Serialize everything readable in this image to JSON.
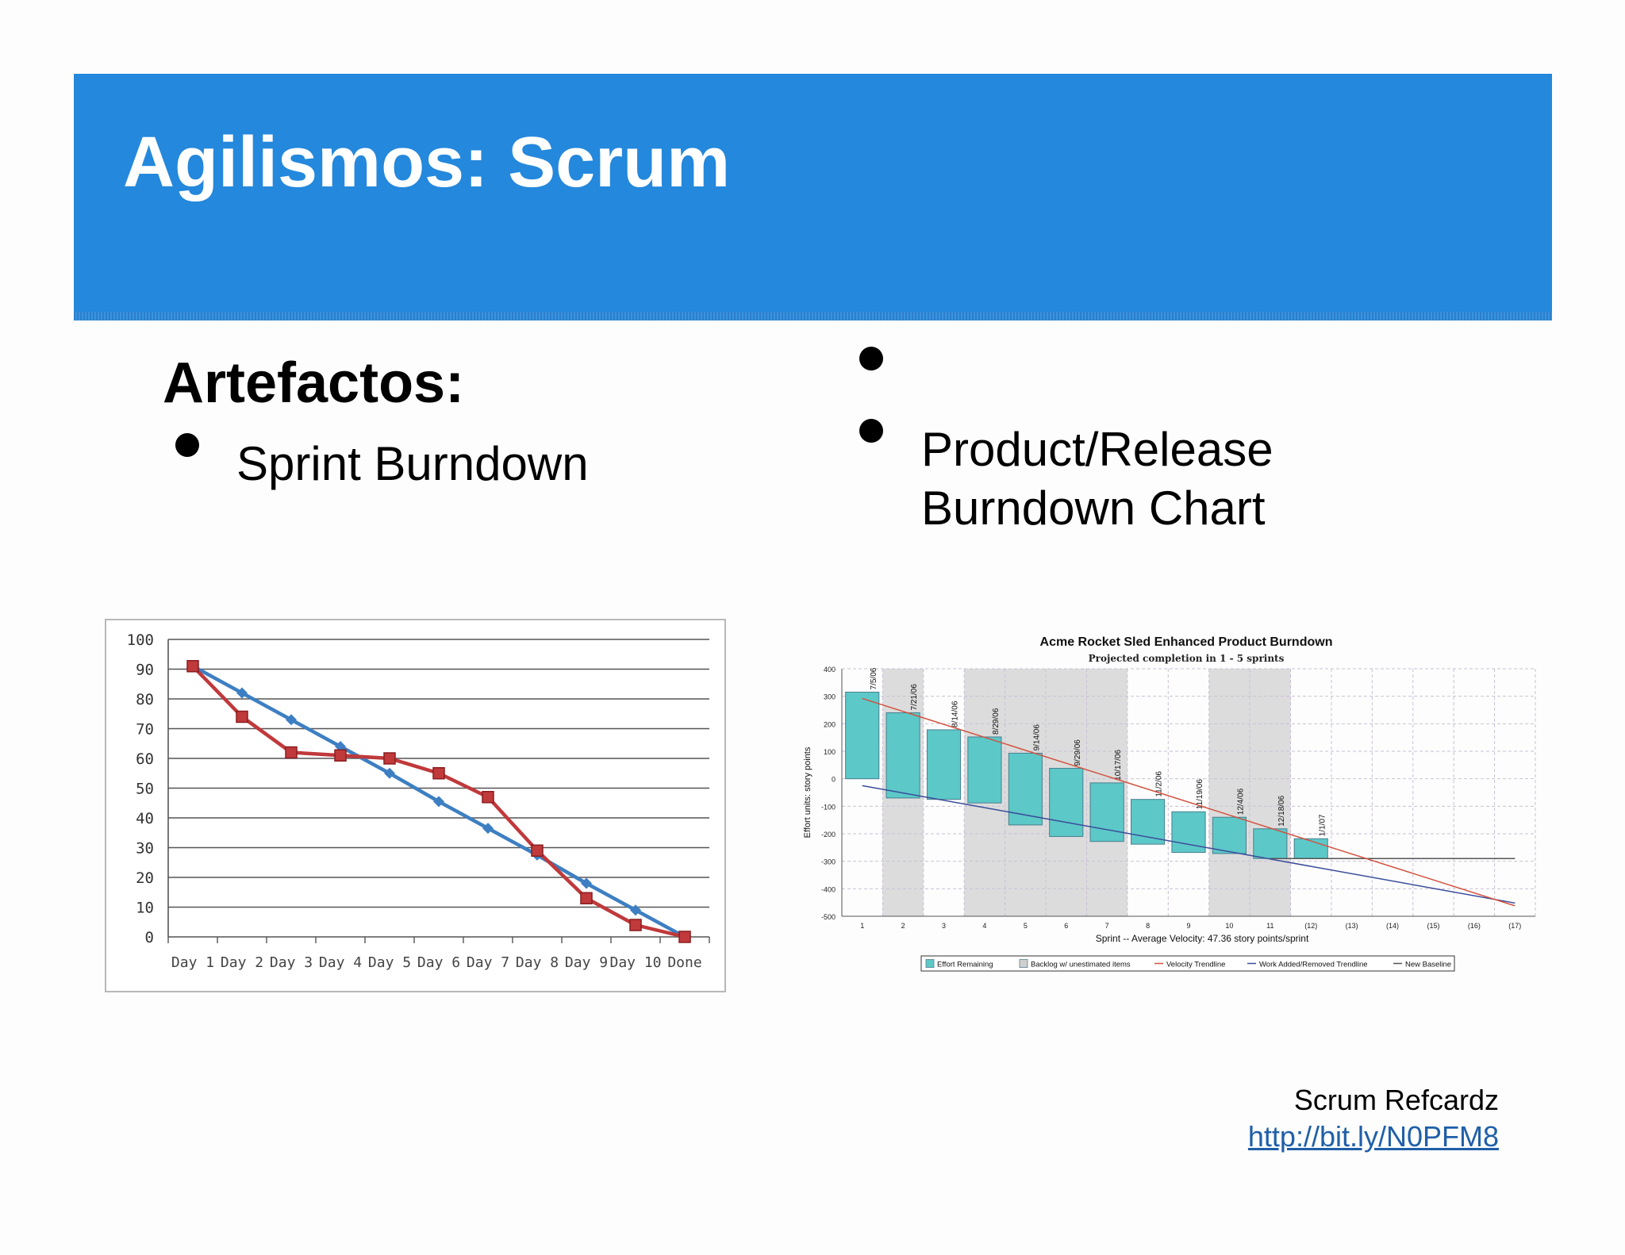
{
  "slide": {
    "title": "Agilismos: Scrum",
    "section_title": "Artefactos:",
    "bullet_left": "Sprint Burndown",
    "bullet_right_line1": "Product/Release",
    "bullet_right_line2": "Burndown Chart",
    "credit_label": "Scrum Refcardz",
    "credit_link": "http://bit.ly/N0PFM8"
  },
  "colors": {
    "header": "#2488dc",
    "ideal_line": "#3d7fc2",
    "actual_line": "#c0393b",
    "effort_bar": "#5cc8c8",
    "backlog_band": "#dcdcdc",
    "velocity_trend": "#d2533f",
    "work_added_trend": "#3b4d9a",
    "baseline": "#555555"
  },
  "chart_data": [
    {
      "type": "line",
      "categories": [
        "Day 1",
        "Day 2",
        "Day 3",
        "Day 4",
        "Day 5",
        "Day 6",
        "Day 7",
        "Day 8",
        "Day 9",
        "Day 10",
        "Done"
      ],
      "series": [
        {
          "values": [
            91,
            82,
            73,
            64,
            55,
            45.5,
            36.5,
            27.5,
            18,
            9,
            0
          ]
        },
        {
          "values": [
            91,
            74,
            62,
            61,
            60,
            55,
            47,
            29,
            13,
            4,
            0
          ]
        }
      ],
      "ylim": [
        0,
        100
      ],
      "yticks": [
        0,
        10,
        20,
        30,
        40,
        50,
        60,
        70,
        80,
        90,
        100
      ],
      "grid": true
    },
    {
      "type": "bar",
      "title": "Acme Rocket Sled Enhanced Product Burndown",
      "subtitle": "Projected completion in 1 - 5 sprints",
      "xlabel": "Sprint -- Average Velocity: 47.36 story points/sprint",
      "ylabel": "Effort units: story points",
      "categories": [
        "1",
        "2",
        "3",
        "4",
        "5",
        "6",
        "7",
        "8",
        "9",
        "10",
        "11",
        "(12)",
        "(13)",
        "(14)",
        "(15)",
        "(16)",
        "(17)"
      ],
      "bar_dates": [
        "7/5/06",
        "7/21/06",
        "8/14/06",
        "8/29/06",
        "9/14/06",
        "9/29/06",
        "10/17/06",
        "11/2/06",
        "11/19/06",
        "12/4/06",
        "12/18/06",
        "1/1/07"
      ],
      "effort_remaining": [
        {
          "top": 315,
          "bottom": 0
        },
        {
          "top": 240,
          "bottom": -70
        },
        {
          "top": 178,
          "bottom": -75
        },
        {
          "top": 152,
          "bottom": -88
        },
        {
          "top": 93,
          "bottom": -168
        },
        {
          "top": 38,
          "bottom": -210
        },
        {
          "top": -15,
          "bottom": -228
        },
        {
          "top": -75,
          "bottom": -238
        },
        {
          "top": -120,
          "bottom": -268
        },
        {
          "top": -140,
          "bottom": -272
        },
        {
          "top": -182,
          "bottom": -290
        },
        {
          "top": -218,
          "bottom": -290
        }
      ],
      "backlog_bands": [
        [
          2,
          2
        ],
        [
          4,
          7
        ],
        [
          10,
          11
        ]
      ],
      "velocity_trendline": {
        "from": [
          1,
          292
        ],
        "to": [
          17,
          -462
        ]
      },
      "work_added_trendline": {
        "from": [
          1,
          -25
        ],
        "to": [
          17,
          -452
        ]
      },
      "new_baseline": {
        "from": [
          11,
          -290
        ],
        "to": [
          17,
          -290
        ]
      },
      "ylim": [
        -500,
        400
      ],
      "yticks": [
        400,
        300,
        200,
        100,
        0,
        -100,
        -200,
        -300,
        -400,
        -500
      ],
      "legend": [
        "Effort Remaining",
        "Backlog w/ unestimated items",
        "Velocity Trendline",
        "Work Added/Removed Trendline",
        "New Baseline"
      ],
      "legend_position": "bottom"
    }
  ]
}
